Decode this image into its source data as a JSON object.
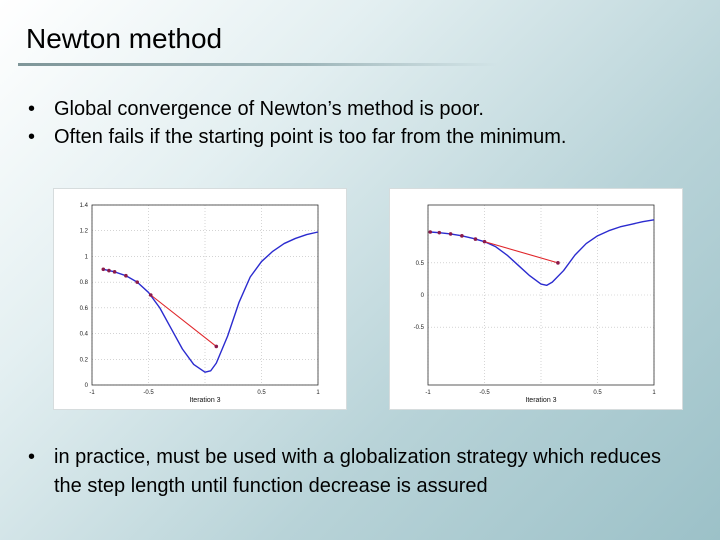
{
  "slide": {
    "title": "Newton method",
    "bullets_top": [
      "Global convergence of Newton’s method is poor.",
      "Often fails if the starting point is too far from the minimum."
    ],
    "bullets_bottom": [
      "in practice, must be used with a globalization strategy which reduces the step length until function decrease is assured"
    ],
    "bullet_glyph": "•"
  },
  "chart_data": [
    {
      "type": "line",
      "xlabel": "Iteration 3",
      "xlim": [
        -1,
        1
      ],
      "ylim": [
        0,
        1.4
      ],
      "xticks": [
        -1,
        -0.5,
        0,
        0.5,
        1
      ],
      "xtick_labels": [
        "-1",
        "-0.5",
        "",
        "0.5",
        "1"
      ],
      "yticks": [
        0,
        0.2,
        0.4,
        0.6,
        0.8,
        1,
        1.2,
        1.4
      ],
      "ytick_labels": [
        "0",
        "0.2",
        "0.4",
        "0.6",
        "0.8",
        "1",
        "1.2",
        "1.4"
      ],
      "colors": {
        "curve": "#2b2bcf",
        "step": "#e0252a",
        "points": "#8b1a4a"
      },
      "curve": {
        "x": [
          -0.9,
          -0.8,
          -0.7,
          -0.6,
          -0.5,
          -0.4,
          -0.3,
          -0.2,
          -0.1,
          0.0,
          0.05,
          0.1,
          0.2,
          0.3,
          0.4,
          0.5,
          0.6,
          0.7,
          0.8,
          0.9,
          1.0
        ],
        "y": [
          0.9,
          0.88,
          0.85,
          0.8,
          0.72,
          0.6,
          0.44,
          0.28,
          0.16,
          0.1,
          0.11,
          0.17,
          0.38,
          0.64,
          0.84,
          0.96,
          1.04,
          1.1,
          1.14,
          1.17,
          1.19
        ]
      },
      "iterates": {
        "x": [
          -0.9,
          -0.85,
          -0.8,
          -0.7,
          -0.6,
          -0.48
        ],
        "y": [
          0.9,
          0.89,
          0.88,
          0.85,
          0.8,
          0.7
        ]
      },
      "step_line": {
        "x": [
          -0.48,
          0.1
        ],
        "y": [
          0.7,
          0.3
        ]
      }
    },
    {
      "type": "line",
      "xlabel": "Iteration 3",
      "xlim": [
        -1,
        1
      ],
      "ylim": [
        -1.4,
        1.4
      ],
      "xticks": [
        -1,
        -0.5,
        0,
        0.5,
        1
      ],
      "xtick_labels": [
        "-1",
        "-0.5",
        "",
        "0.5",
        "1"
      ],
      "yticks": [
        -0.5,
        0,
        0.5
      ],
      "ytick_labels": [
        "-0.5",
        "0",
        "0.5"
      ],
      "colors": {
        "curve": "#2b2bcf",
        "step": "#e0252a",
        "points": "#8b1a4a"
      },
      "curve": {
        "x": [
          -0.98,
          -0.9,
          -0.8,
          -0.7,
          -0.6,
          -0.5,
          -0.4,
          -0.3,
          -0.2,
          -0.1,
          0.0,
          0.05,
          0.1,
          0.2,
          0.3,
          0.4,
          0.5,
          0.6,
          0.7,
          0.8,
          0.9,
          1.0
        ],
        "y": [
          0.98,
          0.97,
          0.95,
          0.92,
          0.88,
          0.83,
          0.75,
          0.62,
          0.46,
          0.3,
          0.17,
          0.15,
          0.2,
          0.38,
          0.62,
          0.8,
          0.92,
          1.0,
          1.06,
          1.1,
          1.14,
          1.17
        ]
      },
      "iterates": {
        "x": [
          -0.98,
          -0.9,
          -0.8,
          -0.7,
          -0.58,
          -0.5
        ],
        "y": [
          0.98,
          0.97,
          0.95,
          0.92,
          0.87,
          0.83
        ]
      },
      "step_line": {
        "x": [
          -0.5,
          0.15
        ],
        "y": [
          0.83,
          0.5
        ]
      }
    }
  ]
}
